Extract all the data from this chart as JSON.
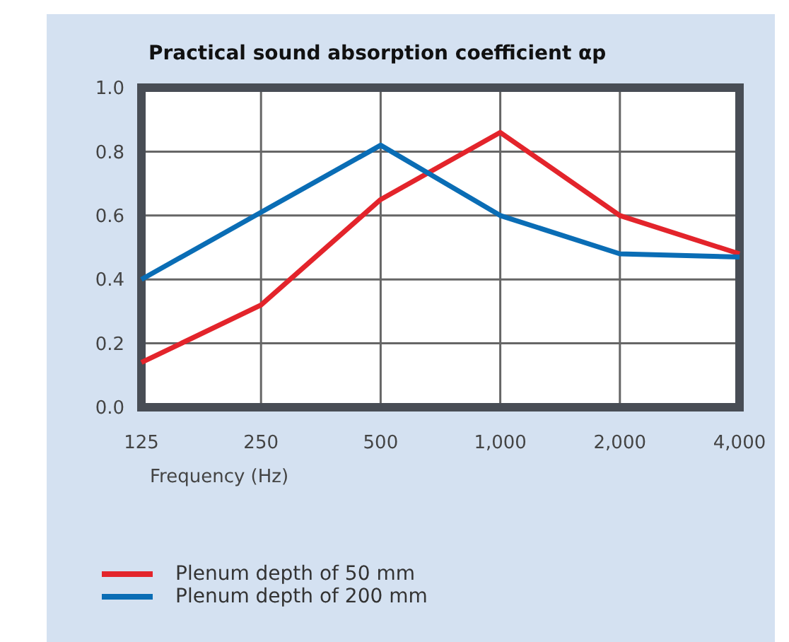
{
  "chart_data": {
    "type": "line",
    "title": "Practical sound absorption coefficient αp",
    "xlabel": "Frequency (Hz)",
    "categories": [
      "125",
      "250",
      "500",
      "1,000",
      "2,000",
      "4,000"
    ],
    "series": [
      {
        "name": "Plenum depth of 50 mm",
        "color": "#e3242b",
        "values": [
          0.14,
          0.32,
          0.65,
          0.86,
          0.6,
          0.48
        ]
      },
      {
        "name": "Plenum depth of 200 mm",
        "color": "#0a6db5",
        "values": [
          0.4,
          0.61,
          0.82,
          0.6,
          0.48,
          0.47
        ]
      }
    ],
    "ylim": [
      0,
      1
    ],
    "yticks": [
      {
        "value": 0,
        "label": "0.0"
      },
      0.2,
      0.4,
      0.6,
      0.8,
      {
        "value": 1,
        "label": "1.0"
      }
    ],
    "grid": true,
    "legend": "bottom",
    "marker": "none",
    "line_style": "solid"
  }
}
